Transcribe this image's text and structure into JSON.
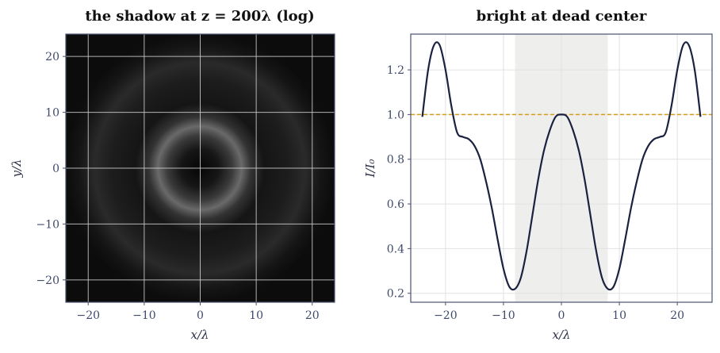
{
  "chart_data": [
    {
      "type": "heatmap",
      "title": "the shadow at z = 200λ (log)",
      "xlabel": "x/λ",
      "ylabel": "y/λ",
      "xlim": [
        -24,
        24
      ],
      "ylim": [
        -24,
        24
      ],
      "xticks": [
        -20,
        -10,
        0,
        10,
        20
      ],
      "yticks": [
        -20,
        -10,
        0,
        10,
        20
      ],
      "xtick_labels": [
        "−20",
        "−10",
        "0",
        "10",
        "20"
      ],
      "ytick_labels": [
        "−20",
        "−10",
        "0",
        "10",
        "20"
      ],
      "grid": true,
      "colormap": "gray",
      "background_color": "#0b0b0b",
      "grid_color": "#cfcfcf",
      "description_of_pattern": {
        "center_spot_radius": 0,
        "bright_ring_radius": 9,
        "outer_ring_radius": 19
      }
    },
    {
      "type": "line",
      "title": "bright at dead center",
      "xlabel": "x/λ",
      "ylabel": "I/I₀",
      "xlim": [
        -26,
        26
      ],
      "ylim": [
        0.16,
        1.36
      ],
      "xticks": [
        -20,
        -10,
        0,
        10,
        20
      ],
      "yticks": [
        0.2,
        0.4,
        0.6,
        0.8,
        1.0,
        1.2
      ],
      "xtick_labels": [
        "−20",
        "−10",
        "0",
        "10",
        "20"
      ],
      "ytick_labels": [
        "0.2",
        "0.4",
        "0.6",
        "0.8",
        "1.0",
        "1.2"
      ],
      "grid": true,
      "line_color": "#1b2140",
      "reference_line": {
        "y": 1.0,
        "color": "#d4a017",
        "style": "dashed"
      },
      "shaded_region": {
        "x": [
          -8,
          8
        ],
        "color": "#eeeeec"
      },
      "series": [
        {
          "x": [
            -24,
            -23,
            -22,
            -21,
            -20,
            -19,
            -18,
            -17,
            -16,
            -15,
            -14,
            -13,
            -12,
            -11,
            -10,
            -9,
            -8,
            -7,
            -6,
            -5,
            -4,
            -3,
            -2,
            -1,
            0,
            1,
            2,
            3,
            4,
            5,
            6,
            7,
            8,
            9,
            10,
            11,
            12,
            13,
            14,
            15,
            16,
            17,
            18,
            19,
            20,
            21,
            22,
            23,
            24
          ],
          "values": [
            0.99,
            1.2,
            1.31,
            1.31,
            1.2,
            1.04,
            0.92,
            0.9,
            0.89,
            0.86,
            0.8,
            0.7,
            0.58,
            0.44,
            0.31,
            0.23,
            0.22,
            0.27,
            0.39,
            0.55,
            0.71,
            0.84,
            0.93,
            0.99,
            1.0,
            0.99,
            0.93,
            0.84,
            0.71,
            0.55,
            0.39,
            0.27,
            0.22,
            0.23,
            0.31,
            0.44,
            0.58,
            0.7,
            0.8,
            0.86,
            0.89,
            0.9,
            0.92,
            1.04,
            1.2,
            1.31,
            1.31,
            1.2,
            0.99
          ]
        }
      ]
    }
  ]
}
